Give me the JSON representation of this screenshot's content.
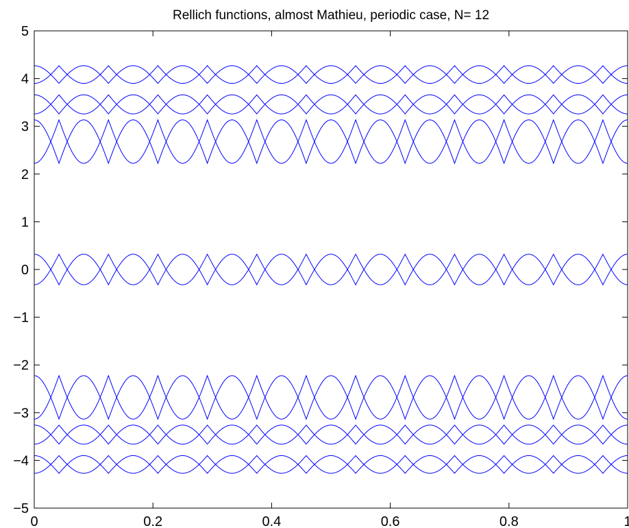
{
  "chart_data": {
    "type": "line",
    "title": "Rellich functions, almost Mathieu, periodic case,  N= 12",
    "xlabel": "",
    "ylabel": "",
    "xlim": [
      0,
      1
    ],
    "ylim": [
      -5,
      5
    ],
    "grid": false,
    "color": "#0000ff",
    "x_ticks": [
      0,
      0.2,
      0.4,
      0.6,
      0.8,
      1
    ],
    "x_tick_labels": [
      "0",
      "0.2",
      "0.4",
      "0.6",
      "0.8",
      "1"
    ],
    "y_ticks": [
      -5,
      -4,
      -3,
      -2,
      -1,
      0,
      1,
      2,
      3,
      4,
      5
    ],
    "y_tick_labels": [
      "−5",
      "−4",
      "−3",
      "−2",
      "−1",
      "0",
      "1",
      "2",
      "3",
      "4",
      "5"
    ],
    "periods": 12,
    "series": [
      {
        "mid": 4.085,
        "amp": 0.185,
        "phase": "max_at_0"
      },
      {
        "mid": 4.085,
        "amp": 0.185,
        "phase": "min_at_0"
      },
      {
        "mid": 3.46,
        "amp": 0.2,
        "phase": "max_at_0"
      },
      {
        "mid": 3.46,
        "amp": 0.2,
        "phase": "min_at_0"
      },
      {
        "mid": 2.68,
        "amp": 0.455,
        "phase": "max_at_0"
      },
      {
        "mid": 2.68,
        "amp": 0.455,
        "phase": "min_at_0"
      },
      {
        "mid": 0.0,
        "amp": 0.32,
        "phase": "max_at_0"
      },
      {
        "mid": 0.0,
        "amp": 0.32,
        "phase": "min_at_0"
      },
      {
        "mid": -2.68,
        "amp": 0.455,
        "phase": "max_at_0"
      },
      {
        "mid": -2.68,
        "amp": 0.455,
        "phase": "min_at_0"
      },
      {
        "mid": -3.46,
        "amp": 0.2,
        "phase": "max_at_0"
      },
      {
        "mid": -3.46,
        "amp": 0.2,
        "phase": "min_at_0"
      },
      {
        "mid": -4.085,
        "amp": 0.185,
        "phase": "max_at_0"
      },
      {
        "mid": -4.085,
        "amp": 0.185,
        "phase": "min_at_0"
      }
    ]
  }
}
